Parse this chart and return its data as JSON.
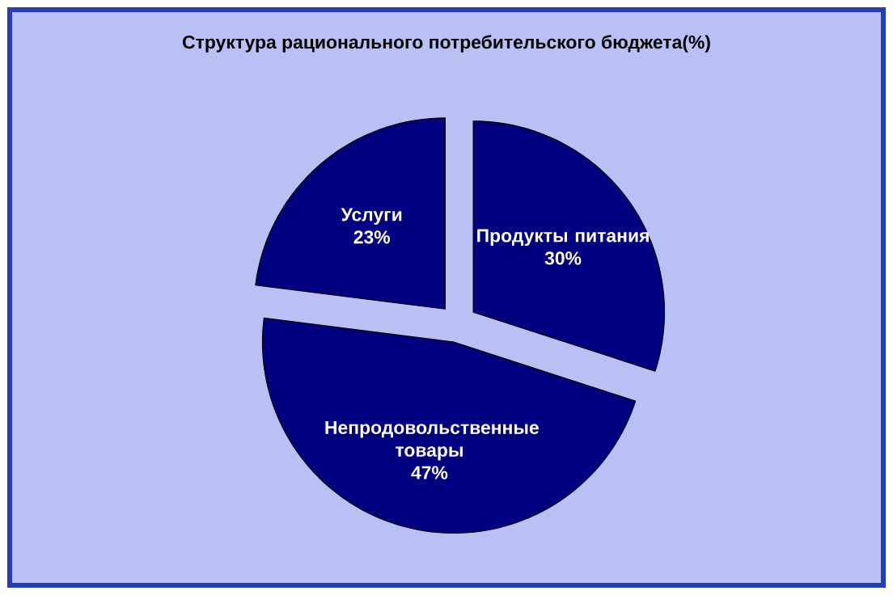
{
  "chart_data": {
    "type": "pie",
    "title": "Структура рационального потребительского бюджета(%)",
    "categories": [
      "Продукты питания",
      "Непродовольственные товары",
      "Услуги"
    ],
    "values": [
      30,
      47,
      23
    ],
    "value_labels": [
      "30%",
      "47%",
      "23%"
    ],
    "colors": [
      "#000080",
      "#000080",
      "#000080"
    ]
  }
}
